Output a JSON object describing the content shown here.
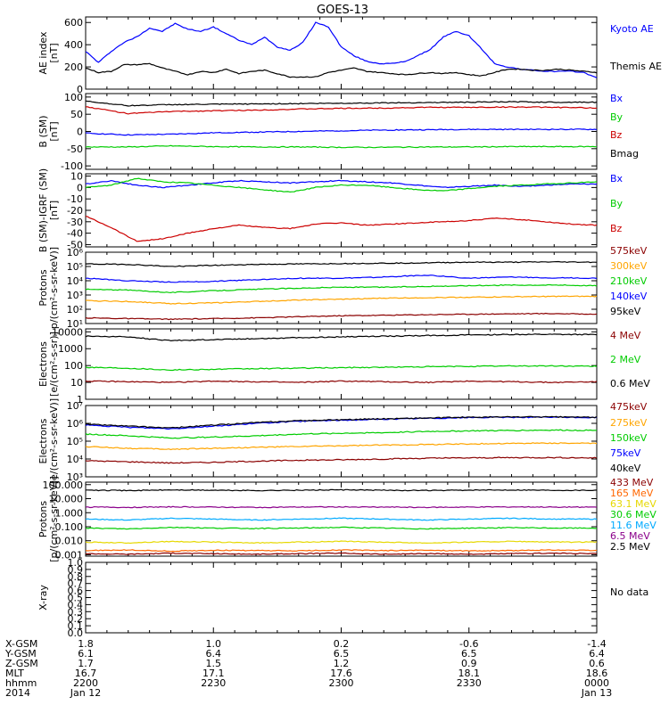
{
  "title": "GOES-13",
  "chart_data": [
    {
      "type": "line",
      "name": "ae-index",
      "ylabel": [
        "AE index",
        "[nT]"
      ],
      "scale": "linear",
      "ylim": [
        0,
        650
      ],
      "yticks": [
        0,
        200,
        400,
        600
      ],
      "yticklabels": [
        "0",
        "200",
        "400",
        "600"
      ],
      "x": [
        0,
        3,
        6,
        9,
        12,
        15,
        18,
        21,
        24,
        27,
        30,
        33,
        36,
        39,
        42,
        45,
        48,
        51,
        54,
        57,
        60,
        63,
        66,
        69,
        72,
        75,
        78,
        81,
        84,
        87,
        90,
        93,
        96,
        99,
        102,
        105,
        108,
        111,
        114,
        117,
        120
      ],
      "series": [
        {
          "name": "Kyoto AE",
          "color": "#0000ff",
          "values": [
            340,
            240,
            340,
            420,
            470,
            550,
            520,
            590,
            540,
            520,
            560,
            500,
            440,
            400,
            470,
            380,
            350,
            420,
            600,
            560,
            380,
            300,
            250,
            230,
            230,
            250,
            300,
            360,
            470,
            520,
            480,
            360,
            230,
            200,
            180,
            170,
            160,
            160,
            160,
            150,
            100
          ]
        },
        {
          "name": "Themis AE",
          "color": "#000000",
          "values": [
            190,
            150,
            160,
            220,
            220,
            230,
            190,
            160,
            130,
            160,
            150,
            180,
            140,
            160,
            170,
            140,
            110,
            110,
            110,
            150,
            170,
            190,
            160,
            150,
            140,
            130,
            140,
            150,
            140,
            150,
            130,
            120,
            150,
            180,
            180,
            170,
            170,
            180,
            170,
            160,
            150
          ]
        }
      ]
    },
    {
      "type": "line",
      "name": "b-sm",
      "ylabel": [
        "B (SM)",
        "[nT]"
      ],
      "scale": "linear",
      "ylim": [
        -110,
        110
      ],
      "yticks": [
        -100,
        -50,
        0,
        50,
        100
      ],
      "yticklabels": [
        "-100",
        "-50",
        "0",
        "50",
        "100"
      ],
      "x": [
        0,
        10,
        20,
        30,
        40,
        50,
        60,
        70,
        80,
        90,
        100,
        110,
        120
      ],
      "series": [
        {
          "name": "Bx",
          "color": "#0000ff",
          "values": [
            -5,
            -10,
            -8,
            -4,
            -2,
            0,
            2,
            4,
            5,
            6,
            6,
            6,
            6
          ]
        },
        {
          "name": "By",
          "color": "#00cc00",
          "values": [
            -45,
            -45,
            -42,
            -44,
            -45,
            -45,
            -46,
            -46,
            -45,
            -45,
            -44,
            -44,
            -44
          ]
        },
        {
          "name": "Bz",
          "color": "#cc0000",
          "values": [
            72,
            52,
            58,
            60,
            62,
            65,
            67,
            68,
            70,
            70,
            71,
            70,
            68
          ]
        },
        {
          "name": "Bmag",
          "color": "#000000",
          "values": [
            88,
            75,
            78,
            79,
            80,
            81,
            82,
            83,
            84,
            85,
            86,
            85,
            85
          ]
        }
      ]
    },
    {
      "type": "line",
      "name": "b-minus-igrf",
      "ylabel": [
        "B (SM)-IGRF (SM)",
        "[nT]"
      ],
      "scale": "linear",
      "ylim": [
        -52,
        12
      ],
      "yticks": [
        -50,
        -40,
        -30,
        -20,
        -10,
        0,
        10
      ],
      "yticklabels": [
        "-50",
        "-40",
        "-30",
        "-20",
        "-10",
        "0",
        "10"
      ],
      "x": [
        0,
        6,
        12,
        18,
        24,
        30,
        36,
        42,
        48,
        54,
        60,
        66,
        72,
        78,
        84,
        90,
        96,
        102,
        108,
        114,
        120
      ],
      "series": [
        {
          "name": "Bx",
          "color": "#0000ff",
          "values": [
            3,
            6,
            2,
            0,
            2,
            4,
            6,
            5,
            4,
            5,
            6,
            5,
            4,
            2,
            0,
            1,
            2,
            1,
            2,
            3,
            3
          ]
        },
        {
          "name": "By",
          "color": "#00cc00",
          "values": [
            0,
            2,
            8,
            5,
            4,
            2,
            0,
            -2,
            -4,
            0,
            2,
            2,
            0,
            -2,
            -3,
            -1,
            1,
            2,
            3,
            4,
            5
          ]
        },
        {
          "name": "Bz",
          "color": "#cc0000",
          "values": [
            -25,
            -35,
            -47,
            -45,
            -40,
            -36,
            -33,
            -35,
            -36,
            -32,
            -31,
            -33,
            -32,
            -31,
            -30,
            -29,
            -27,
            -28,
            -30,
            -32,
            -33
          ]
        }
      ]
    },
    {
      "type": "line",
      "name": "protons-low",
      "ylabel": [
        "Protons",
        "p/(cm²-s-sr-keV)]"
      ],
      "scale": "log",
      "ylim": [
        10,
        1000000
      ],
      "yticks": [
        10,
        100,
        1000,
        10000,
        100000,
        1000000
      ],
      "yticklabels": [
        "10¹",
        "10²",
        "10³",
        "10⁴",
        "10⁵",
        "10⁶"
      ],
      "x": [
        0,
        10,
        20,
        30,
        40,
        50,
        60,
        70,
        80,
        90,
        100,
        110,
        120
      ],
      "series": [
        {
          "name": "575keV",
          "color": "#8b0000",
          "values": [
            25,
            22,
            20,
            22,
            25,
            30,
            35,
            38,
            42,
            45,
            48,
            50,
            45
          ]
        },
        {
          "name": "300keV",
          "color": "#ffa500",
          "values": [
            400,
            350,
            250,
            280,
            350,
            450,
            500,
            600,
            650,
            700,
            750,
            800,
            800
          ]
        },
        {
          "name": "210keV",
          "color": "#00cc00",
          "values": [
            2500,
            2200,
            1500,
            2000,
            2500,
            3000,
            3500,
            3500,
            4000,
            4500,
            5000,
            5000,
            4500
          ]
        },
        {
          "name": "140keV",
          "color": "#0000ff",
          "values": [
            15000,
            10000,
            8000,
            9000,
            12000,
            15000,
            15000,
            18000,
            25000,
            15000,
            18000,
            16000,
            15000
          ]
        },
        {
          "name": "95keV",
          "color": "#000000",
          "values": [
            150000,
            140000,
            100000,
            120000,
            140000,
            150000,
            160000,
            170000,
            180000,
            200000,
            200000,
            210000,
            200000
          ]
        }
      ]
    },
    {
      "type": "line",
      "name": "electrons-mev",
      "ylabel": [
        "Electrons",
        "[e/(cm²-s-sr)]"
      ],
      "scale": "log",
      "ylim": [
        1,
        15000
      ],
      "yticks": [
        1,
        10,
        100,
        1000,
        10000
      ],
      "yticklabels": [
        "1",
        "10",
        "100",
        "1000",
        "10000"
      ],
      "x": [
        0,
        10,
        20,
        30,
        40,
        50,
        60,
        70,
        80,
        90,
        100,
        110,
        120
      ],
      "series": [
        {
          "name": "4 MeV",
          "color": "#8b0000",
          "values": [
            12,
            11,
            10,
            12,
            11,
            10,
            12,
            11,
            10,
            12,
            11,
            10,
            11
          ]
        },
        {
          "name": "2 MeV",
          "color": "#00cc00",
          "values": [
            80,
            70,
            55,
            60,
            65,
            70,
            75,
            80,
            85,
            90,
            95,
            95,
            90
          ]
        },
        {
          "name": "0.6 MeV",
          "color": "#000000",
          "values": [
            5500,
            5000,
            3000,
            3500,
            4000,
            4500,
            5000,
            5500,
            6000,
            6500,
            7000,
            7000,
            6800
          ]
        }
      ]
    },
    {
      "type": "line",
      "name": "electrons-kev",
      "ylabel": [
        "Electrons",
        "[e/(cm²-s-sr-keV)]"
      ],
      "scale": "log",
      "ylim": [
        1000,
        10000000
      ],
      "yticks": [
        1000,
        10000,
        100000,
        1000000,
        10000000
      ],
      "yticklabels": [
        "10³",
        "10⁴",
        "10⁵",
        "10⁶",
        "10⁷"
      ],
      "x": [
        0,
        10,
        20,
        30,
        40,
        50,
        60,
        70,
        80,
        90,
        100,
        110,
        120
      ],
      "series": [
        {
          "name": "475keV",
          "color": "#8b0000",
          "values": [
            8000,
            7000,
            6000,
            6500,
            7500,
            8500,
            9000,
            10000,
            11000,
            11500,
            12000,
            12000,
            11500
          ]
        },
        {
          "name": "275keV",
          "color": "#ffa500",
          "values": [
            50000,
            40000,
            35000,
            40000,
            45000,
            50000,
            55000,
            60000,
            65000,
            70000,
            75000,
            78000,
            75000
          ]
        },
        {
          "name": "150keV",
          "color": "#00cc00",
          "values": [
            250000,
            200000,
            150000,
            170000,
            200000,
            250000,
            280000,
            300000,
            350000,
            380000,
            400000,
            420000,
            400000
          ]
        },
        {
          "name": "75keV",
          "color": "#0000ff",
          "values": [
            800000,
            600000,
            500000,
            700000,
            1000000,
            1300000,
            1500000,
            1700000,
            1900000,
            2100000,
            2200000,
            2200000,
            2100000
          ]
        },
        {
          "name": "40keV",
          "color": "#000000",
          "values": [
            900000,
            700000,
            550000,
            800000,
            1100000,
            1400000,
            1600000,
            1800000,
            2000000,
            2200000,
            2300000,
            2300000,
            2200000
          ]
        }
      ]
    },
    {
      "type": "line",
      "name": "protons-high",
      "ylabel": [
        "Protons",
        "[p/(cm²-s-sr-keV)]"
      ],
      "scale": "log",
      "ylim": [
        0.0008,
        150
      ],
      "yticks": [
        0.001,
        0.01,
        0.1,
        1,
        10,
        100
      ],
      "yticklabels": [
        "0.001",
        "0.010",
        "0.100",
        "1.000",
        "10.000",
        "100.000"
      ],
      "x": [
        0,
        10,
        20,
        30,
        40,
        50,
        60,
        70,
        80,
        90,
        100,
        110,
        120
      ],
      "series": [
        {
          "name": "433 MeV",
          "color": "#8b0000",
          "values": [
            0.0012,
            0.0011,
            0.0013,
            0.0012,
            0.0011,
            0.0012,
            0.0013,
            0.0011,
            0.0012,
            0.0011,
            0.0012,
            0.0013,
            0.0012
          ]
        },
        {
          "name": "165 MeV",
          "color": "#ff6600",
          "values": [
            0.002,
            0.0022,
            0.0018,
            0.0021,
            0.002,
            0.0019,
            0.0022,
            0.002,
            0.0021,
            0.0019,
            0.002,
            0.0022,
            0.002
          ]
        },
        {
          "name": "63.1 MeV",
          "color": "#e6d800",
          "values": [
            0.008,
            0.007,
            0.009,
            0.008,
            0.007,
            0.008,
            0.009,
            0.008,
            0.007,
            0.008,
            0.009,
            0.008,
            0.008
          ]
        },
        {
          "name": "30.6 MeV",
          "color": "#00cc00",
          "values": [
            0.08,
            0.07,
            0.09,
            0.08,
            0.075,
            0.08,
            0.09,
            0.08,
            0.07,
            0.08,
            0.085,
            0.08,
            0.08
          ]
        },
        {
          "name": "11.6 MeV",
          "color": "#00aaff",
          "values": [
            0.35,
            0.3,
            0.4,
            0.35,
            0.3,
            0.35,
            0.4,
            0.35,
            0.3,
            0.35,
            0.4,
            0.35,
            0.35
          ]
        },
        {
          "name": "6.5 MeV",
          "color": "#8b008b",
          "values": [
            2.5,
            2.4,
            2.6,
            2.5,
            2.4,
            2.5,
            2.6,
            2.5,
            2.4,
            2.5,
            2.6,
            2.5,
            2.5
          ]
        },
        {
          "name": "2.5 MeV",
          "color": "#000000",
          "values": [
            40,
            38,
            42,
            40,
            38,
            40,
            42,
            40,
            38,
            40,
            42,
            40,
            40
          ]
        }
      ]
    },
    {
      "type": "line",
      "name": "x-ray",
      "ylabel": [
        "X-ray",
        ""
      ],
      "scale": "linear",
      "ylim": [
        0,
        1.0
      ],
      "yticks": [
        0,
        0.1,
        0.2,
        0.3,
        0.4,
        0.5,
        0.6,
        0.7,
        0.8,
        0.9,
        1.0
      ],
      "yticklabels": [
        "0.0",
        "0.1",
        "0.2",
        "0.3",
        "0.4",
        "0.5",
        "0.6",
        "0.7",
        "0.8",
        "0.9",
        "1.0"
      ],
      "x": [],
      "series": [
        {
          "name": "No data",
          "color": "#000000",
          "values": []
        }
      ]
    }
  ],
  "xaxis": {
    "ticks": [
      0,
      30,
      60,
      90,
      120
    ],
    "row_labels": [
      "X-GSM",
      "Y-GSM",
      "Z-GSM",
      "MLT",
      "hhmm",
      "2014"
    ],
    "rows": [
      [
        "1.8",
        "1.0",
        "0.2",
        "-0.6",
        "-1.4"
      ],
      [
        "6.1",
        "6.4",
        "6.5",
        "6.5",
        "6.4"
      ],
      [
        "1.7",
        "1.5",
        "1.2",
        "0.9",
        "0.6"
      ],
      [
        "16.7",
        "17.1",
        "17.6",
        "18.1",
        "18.6"
      ],
      [
        "2200",
        "2230",
        "2300",
        "2330",
        "0000"
      ],
      [
        "Jan 12",
        "",
        "",
        "",
        "Jan 13"
      ]
    ]
  }
}
